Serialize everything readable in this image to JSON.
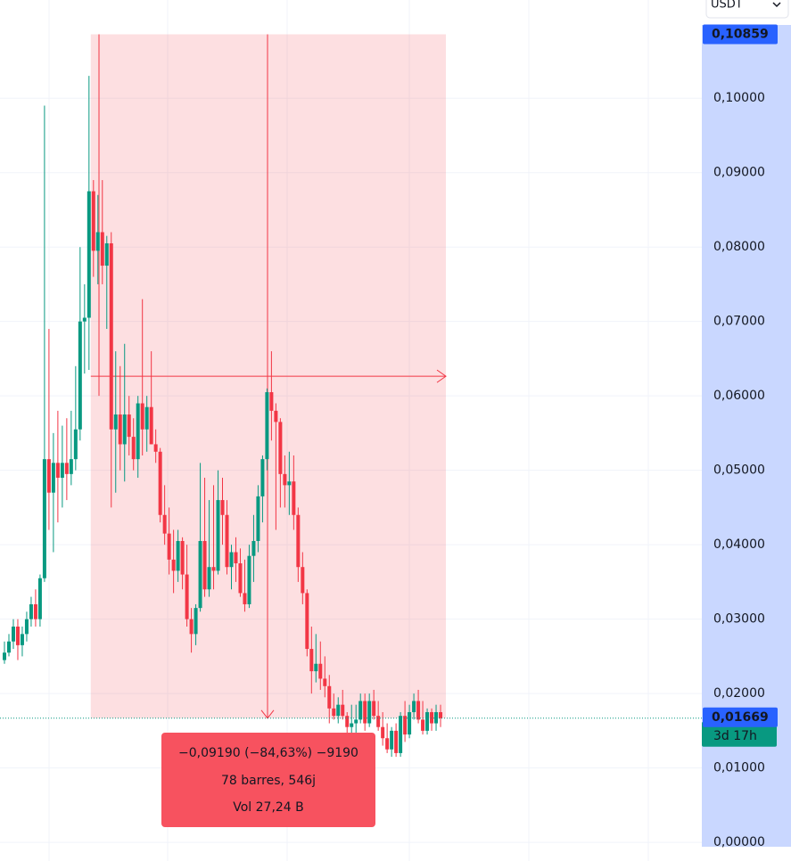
{
  "chart_data": {
    "type": "candlestick",
    "currency": "USDT",
    "countdown": "3d 17h",
    "up_color": "#089981",
    "down_color": "#f23645",
    "grid": true,
    "ylim": [
      -0.0025,
      0.1132
    ],
    "yticks": [
      {
        "value": 0,
        "label": "0,00000"
      },
      {
        "value": 0.01,
        "label": "0,01000"
      },
      {
        "value": 0.02,
        "label": "0,02000"
      },
      {
        "value": 0.03,
        "label": "0,03000"
      },
      {
        "value": 0.04,
        "label": "0,04000"
      },
      {
        "value": 0.05,
        "label": "0,05000"
      },
      {
        "value": 0.06,
        "label": "0,06000"
      },
      {
        "value": 0.07,
        "label": "0,07000"
      },
      {
        "value": 0.08,
        "label": "0,08000"
      },
      {
        "value": 0.09,
        "label": "0,09000"
      },
      {
        "value": 0.1,
        "label": "0,10000"
      }
    ],
    "candles": [
      [
        0.0245,
        0.027,
        0.024,
        0.0255
      ],
      [
        0.0255,
        0.028,
        0.025,
        0.027
      ],
      [
        0.027,
        0.03,
        0.026,
        0.029
      ],
      [
        0.029,
        0.03,
        0.0245,
        0.0265
      ],
      [
        0.0265,
        0.029,
        0.025,
        0.028
      ],
      [
        0.028,
        0.031,
        0.027,
        0.03
      ],
      [
        0.03,
        0.033,
        0.029,
        0.032
      ],
      [
        0.032,
        0.034,
        0.029,
        0.03
      ],
      [
        0.03,
        0.036,
        0.029,
        0.0355
      ],
      [
        0.0355,
        0.099,
        0.035,
        0.0515
      ],
      [
        0.0515,
        0.069,
        0.042,
        0.047
      ],
      [
        0.047,
        0.055,
        0.039,
        0.051
      ],
      [
        0.051,
        0.058,
        0.043,
        0.049
      ],
      [
        0.049,
        0.056,
        0.045,
        0.051
      ],
      [
        0.051,
        0.057,
        0.046,
        0.0495
      ],
      [
        0.0495,
        0.058,
        0.048,
        0.0515
      ],
      [
        0.0515,
        0.064,
        0.05,
        0.0555
      ],
      [
        0.0555,
        0.08,
        0.054,
        0.07
      ],
      [
        0.07,
        0.075,
        0.063,
        0.0705
      ],
      [
        0.0705,
        0.103,
        0.0635,
        0.0875
      ],
      [
        0.0875,
        0.089,
        0.076,
        0.0795
      ],
      [
        0.0795,
        0.087,
        0.075,
        0.082
      ],
      [
        0.082,
        0.089,
        0.075,
        0.0775
      ],
      [
        0.0775,
        0.0815,
        0.069,
        0.0805
      ],
      [
        0.0805,
        0.082,
        0.045,
        0.0555
      ],
      [
        0.0555,
        0.066,
        0.047,
        0.0575
      ],
      [
        0.0575,
        0.064,
        0.05,
        0.0535
      ],
      [
        0.0535,
        0.067,
        0.0485,
        0.0575
      ],
      [
        0.0575,
        0.06,
        0.052,
        0.0545
      ],
      [
        0.0545,
        0.057,
        0.05,
        0.0515
      ],
      [
        0.0515,
        0.06,
        0.049,
        0.059
      ],
      [
        0.059,
        0.073,
        0.052,
        0.0555
      ],
      [
        0.0555,
        0.06,
        0.0525,
        0.0585
      ],
      [
        0.0585,
        0.066,
        0.0535,
        0.0535
      ],
      [
        0.0535,
        0.0555,
        0.051,
        0.0525
      ],
      [
        0.0525,
        0.053,
        0.043,
        0.044
      ],
      [
        0.044,
        0.048,
        0.04,
        0.0415
      ],
      [
        0.0415,
        0.045,
        0.036,
        0.038
      ],
      [
        0.038,
        0.042,
        0.0335,
        0.0365
      ],
      [
        0.0365,
        0.042,
        0.035,
        0.0405
      ],
      [
        0.0405,
        0.041,
        0.034,
        0.036
      ],
      [
        0.036,
        0.04,
        0.029,
        0.03
      ],
      [
        0.03,
        0.0315,
        0.0255,
        0.028
      ],
      [
        0.028,
        0.032,
        0.0265,
        0.0315
      ],
      [
        0.0315,
        0.051,
        0.031,
        0.0405
      ],
      [
        0.0405,
        0.049,
        0.033,
        0.034
      ],
      [
        0.034,
        0.046,
        0.033,
        0.037
      ],
      [
        0.037,
        0.048,
        0.034,
        0.0365
      ],
      [
        0.0365,
        0.05,
        0.036,
        0.046
      ],
      [
        0.046,
        0.049,
        0.04,
        0.044
      ],
      [
        0.044,
        0.046,
        0.036,
        0.037
      ],
      [
        0.037,
        0.04,
        0.034,
        0.039
      ],
      [
        0.039,
        0.041,
        0.035,
        0.0375
      ],
      [
        0.0375,
        0.0395,
        0.033,
        0.0335
      ],
      [
        0.0335,
        0.038,
        0.031,
        0.032
      ],
      [
        0.032,
        0.04,
        0.0315,
        0.0385
      ],
      [
        0.0385,
        0.044,
        0.035,
        0.0405
      ],
      [
        0.0405,
        0.048,
        0.039,
        0.0465
      ],
      [
        0.0465,
        0.052,
        0.043,
        0.0515
      ],
      [
        0.0515,
        0.061,
        0.05,
        0.0605
      ],
      [
        0.0605,
        0.066,
        0.054,
        0.058
      ],
      [
        0.058,
        0.059,
        0.042,
        0.0565
      ],
      [
        0.0565,
        0.057,
        0.045,
        0.0495
      ],
      [
        0.0495,
        0.052,
        0.045,
        0.048
      ],
      [
        0.048,
        0.0525,
        0.044,
        0.0485
      ],
      [
        0.0485,
        0.052,
        0.042,
        0.044
      ],
      [
        0.044,
        0.045,
        0.035,
        0.037
      ],
      [
        0.037,
        0.039,
        0.032,
        0.0335
      ],
      [
        0.0335,
        0.034,
        0.025,
        0.026
      ],
      [
        0.026,
        0.029,
        0.02,
        0.023
      ],
      [
        0.023,
        0.028,
        0.0215,
        0.024
      ],
      [
        0.024,
        0.027,
        0.0205,
        0.022
      ],
      [
        0.022,
        0.025,
        0.0195,
        0.021
      ],
      [
        0.021,
        0.0225,
        0.016,
        0.018
      ],
      [
        0.018,
        0.02,
        0.0165,
        0.017
      ],
      [
        0.017,
        0.0195,
        0.016,
        0.0185
      ],
      [
        0.0185,
        0.0205,
        0.0165,
        0.017
      ],
      [
        0.017,
        0.0175,
        0.014,
        0.0155
      ],
      [
        0.0155,
        0.0185,
        0.0145,
        0.016
      ],
      [
        0.016,
        0.0185,
        0.0145,
        0.0165
      ],
      [
        0.0165,
        0.02,
        0.016,
        0.019
      ],
      [
        0.019,
        0.02,
        0.015,
        0.016
      ],
      [
        0.016,
        0.02,
        0.0155,
        0.019
      ],
      [
        0.019,
        0.0205,
        0.0165,
        0.017
      ],
      [
        0.017,
        0.019,
        0.015,
        0.0155
      ],
      [
        0.0155,
        0.0175,
        0.013,
        0.014
      ],
      [
        0.014,
        0.016,
        0.012,
        0.0125
      ],
      [
        0.0125,
        0.0155,
        0.0115,
        0.015
      ],
      [
        0.015,
        0.016,
        0.0115,
        0.012
      ],
      [
        0.012,
        0.0175,
        0.0115,
        0.017
      ],
      [
        0.017,
        0.019,
        0.0135,
        0.0145
      ],
      [
        0.0145,
        0.0185,
        0.014,
        0.0175
      ],
      [
        0.0175,
        0.02,
        0.0165,
        0.019
      ],
      [
        0.019,
        0.0205,
        0.016,
        0.0165
      ],
      [
        0.0165,
        0.019,
        0.0145,
        0.015
      ],
      [
        0.015,
        0.018,
        0.0145,
        0.0175
      ],
      [
        0.0175,
        0.018,
        0.015,
        0.016
      ],
      [
        0.016,
        0.0185,
        0.015,
        0.0175
      ],
      [
        0.0175,
        0.0185,
        0.0155,
        0.01669
      ]
    ],
    "measure": {
      "start": {
        "value": 0.10859,
        "label": "0,10859"
      },
      "end": {
        "value": 0.01669,
        "label": "0,01669"
      },
      "change": "−0,09190 (−84,63%) −9190",
      "bars": "78 barres, 546j",
      "volume": "Vol 27,24 B"
    }
  }
}
